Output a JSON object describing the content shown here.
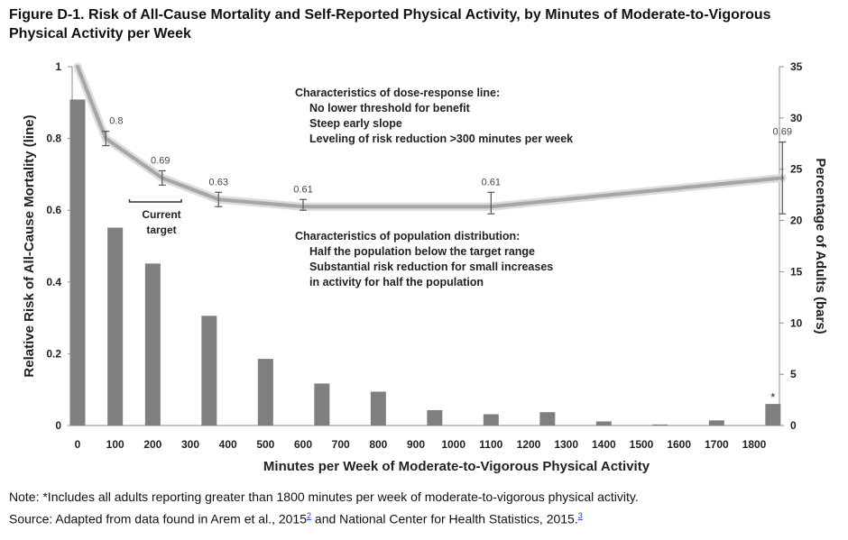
{
  "title": "Figure D-1. Risk of All-Cause Mortality and Self-Reported Physical Activity, by Minutes of Moderate-to-Vigorous Physical Activity per Week",
  "note_text": "Note: *Includes all adults reporting greater than 1800 minutes per week of moderate-to-vigorous physical activity.",
  "source_text": "Source: Adapted from data found in Arem et al., 2015",
  "source_ref1": "2",
  "source_mid": " and National Center for Health Statistics, 2015.",
  "source_ref2": "3",
  "chart_data": {
    "type": "bar",
    "xlabel": "Minutes per Week of Moderate-to-Vigorous Physical Activity",
    "ylabel_left": "Relative Risk of All-Cause Mortality (line)",
    "ylabel_right": "Percentage of Adults (bars)",
    "left_ylim": [
      0,
      1
    ],
    "left_ticks": [
      "0",
      "0.2",
      "0.4",
      "0.6",
      "0.8",
      "1"
    ],
    "right_ylim": [
      0,
      35
    ],
    "right_ticks": [
      "0",
      "5",
      "10",
      "15",
      "20",
      "25",
      "30",
      "35"
    ],
    "x_ticks": [
      "0",
      "100",
      "200",
      "300",
      "400",
      "500",
      "600",
      "700",
      "800",
      "900",
      "1000",
      "1100",
      "1200",
      "1300",
      "1400",
      "1500",
      "1600",
      "1700",
      "1800"
    ],
    "bars": {
      "x": [
        0,
        100,
        200,
        350,
        500,
        650,
        800,
        950,
        1100,
        1250,
        1400,
        1550,
        1700,
        1850
      ],
      "values": [
        31.8,
        19.3,
        15.8,
        10.7,
        6.5,
        4.1,
        3.3,
        1.5,
        1.1,
        1.3,
        0.4,
        0.1,
        0.5,
        2.1
      ]
    },
    "bar_star": "*",
    "line": {
      "x": [
        0,
        75,
        225,
        375,
        600,
        1100,
        1875
      ],
      "values": [
        1.0,
        0.8,
        0.69,
        0.63,
        0.61,
        0.61,
        0.69
      ],
      "err_low": [
        null,
        0.78,
        0.67,
        0.61,
        0.6,
        0.59,
        0.59
      ],
      "err_high": [
        null,
        0.82,
        0.71,
        0.65,
        0.63,
        0.65,
        0.79
      ],
      "labels": [
        "",
        "0.8",
        "0.69",
        "0.63",
        "0.61",
        "0.61",
        "0.69"
      ]
    },
    "current_target": {
      "label_1": "Current",
      "label_2": "target",
      "range": [
        150,
        300
      ]
    },
    "annotation_dose": {
      "heading": "Characteristics of dose-response line:",
      "lines": [
        "No lower threshold for benefit",
        "Steep early slope",
        "Leveling of risk reduction >300 minutes per week"
      ]
    },
    "annotation_population": {
      "heading": "Characteristics of population distribution:",
      "lines": [
        "Half the population below the target range",
        "Substantial risk reduction for small increases",
        "in activity for half the population"
      ]
    },
    "colors": {
      "bar": "#7f7f7f",
      "line": "#a6a6a6",
      "axis": "#8c8c8c",
      "error": "#555555"
    }
  }
}
